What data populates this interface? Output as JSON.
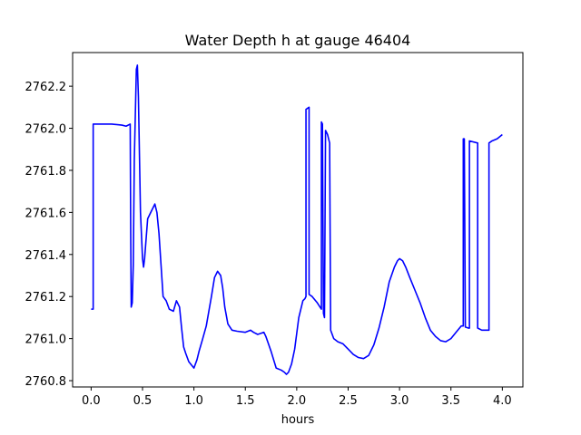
{
  "chart_data": {
    "type": "line",
    "title": "Water Depth h at gauge 46404",
    "xlabel": "hours",
    "ylabel": "",
    "xlim": [
      -0.18,
      4.2
    ],
    "ylim": [
      2760.77,
      2762.36
    ],
    "xticks": [
      0.0,
      0.5,
      1.0,
      1.5,
      2.0,
      2.5,
      3.0,
      3.5,
      4.0
    ],
    "xtick_labels": [
      "0.0",
      "0.5",
      "1.0",
      "1.5",
      "2.0",
      "2.5",
      "3.0",
      "3.5",
      "4.0"
    ],
    "yticks": [
      2760.8,
      2761.0,
      2761.2,
      2761.4,
      2761.6,
      2761.8,
      2762.0,
      2762.2
    ],
    "ytick_labels": [
      "2760.8",
      "2761.0",
      "2761.2",
      "2761.4",
      "2761.6",
      "2761.8",
      "2762.0",
      "2762.2"
    ],
    "grid": false,
    "series": [
      {
        "color": "#0000ff",
        "x": [
          0.0,
          0.02,
          0.02,
          0.1,
          0.2,
          0.3,
          0.34,
          0.38,
          0.385,
          0.39,
          0.4,
          0.41,
          0.42,
          0.44,
          0.45,
          0.46,
          0.48,
          0.5,
          0.51,
          0.52,
          0.55,
          0.58,
          0.62,
          0.64,
          0.66,
          0.68,
          0.7,
          0.73,
          0.76,
          0.8,
          0.83,
          0.86,
          0.88,
          0.9,
          0.92,
          0.95,
          1.0,
          1.03,
          1.05,
          1.08,
          1.12,
          1.17,
          1.2,
          1.23,
          1.26,
          1.28,
          1.3,
          1.33,
          1.37,
          1.42,
          1.5,
          1.55,
          1.58,
          1.62,
          1.65,
          1.68,
          1.7,
          1.75,
          1.8,
          1.85,
          1.88,
          1.9,
          1.92,
          1.95,
          1.98,
          2.02,
          2.06,
          2.08,
          2.09,
          2.09,
          2.12,
          2.12,
          2.15,
          2.2,
          2.24,
          2.24,
          2.25,
          2.26,
          2.27,
          2.28,
          2.28,
          2.3,
          2.32,
          2.33,
          2.36,
          2.4,
          2.45,
          2.5,
          2.55,
          2.6,
          2.65,
          2.7,
          2.75,
          2.8,
          2.85,
          2.9,
          2.95,
          2.98,
          3.0,
          3.03,
          3.06,
          3.1,
          3.15,
          3.2,
          3.25,
          3.3,
          3.35,
          3.4,
          3.45,
          3.5,
          3.55,
          3.6,
          3.62,
          3.62,
          3.63,
          3.64,
          3.64,
          3.67,
          3.68,
          3.68,
          3.76,
          3.76,
          3.8,
          3.85,
          3.87,
          3.87,
          3.9,
          3.95,
          4.0
        ],
        "y": [
          2761.14,
          2761.14,
          2762.02,
          2762.02,
          2762.02,
          2762.015,
          2762.01,
          2762.02,
          2761.5,
          2761.15,
          2761.17,
          2761.35,
          2761.85,
          2762.28,
          2762.3,
          2762.15,
          2761.6,
          2761.38,
          2761.34,
          2761.38,
          2761.57,
          2761.6,
          2761.64,
          2761.6,
          2761.5,
          2761.35,
          2761.2,
          2761.18,
          2761.14,
          2761.13,
          2761.18,
          2761.15,
          2761.05,
          2760.96,
          2760.93,
          2760.89,
          2760.86,
          2760.9,
          2760.94,
          2760.99,
          2761.06,
          2761.2,
          2761.29,
          2761.32,
          2761.3,
          2761.24,
          2761.15,
          2761.07,
          2761.04,
          2761.035,
          2761.03,
          2761.04,
          2761.03,
          2761.02,
          2761.025,
          2761.03,
          2761.01,
          2760.94,
          2760.86,
          2760.85,
          2760.84,
          2760.83,
          2760.84,
          2760.88,
          2760.95,
          2761.1,
          2761.18,
          2761.19,
          2761.2,
          2762.09,
          2762.1,
          2761.21,
          2761.2,
          2761.17,
          2761.14,
          2762.03,
          2762.02,
          2761.12,
          2761.1,
          2761.98,
          2761.99,
          2761.97,
          2761.93,
          2761.04,
          2761.0,
          2760.985,
          2760.975,
          2760.95,
          2760.925,
          2760.91,
          2760.905,
          2760.92,
          2760.97,
          2761.05,
          2761.15,
          2761.27,
          2761.34,
          2761.37,
          2761.38,
          2761.37,
          2761.34,
          2761.29,
          2761.23,
          2761.17,
          2761.1,
          2761.04,
          2761.01,
          2760.99,
          2760.985,
          2761.0,
          2761.03,
          2761.06,
          2761.06,
          2761.95,
          2761.95,
          2761.06,
          2761.055,
          2761.05,
          2761.05,
          2761.94,
          2761.93,
          2761.05,
          2761.04,
          2761.04,
          2761.04,
          2761.93,
          2761.94,
          2761.95,
          2761.97
        ]
      }
    ]
  }
}
